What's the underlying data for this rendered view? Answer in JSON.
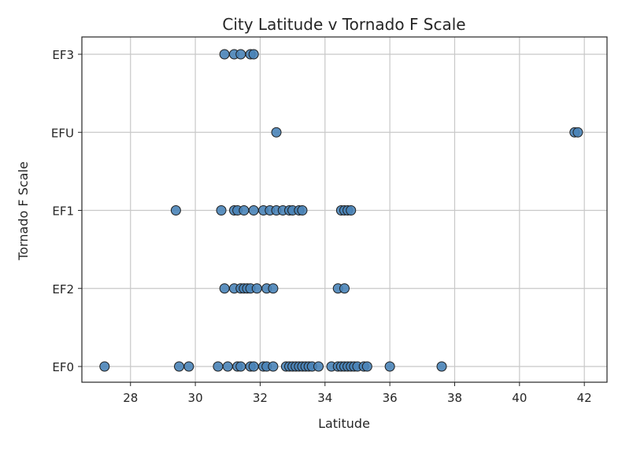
{
  "chart_data": {
    "type": "scatter",
    "title": "City Latitude v Tornado F Scale",
    "xlabel": "Latitude",
    "ylabel": "Tornado F Scale",
    "xlim": [
      26.5,
      42.7
    ],
    "x_ticks": [
      28,
      30,
      32,
      34,
      36,
      38,
      40,
      42
    ],
    "categories": [
      "EF0",
      "EF2",
      "EF1",
      "EFU",
      "EF3"
    ],
    "grid": true,
    "marker_color": "#4a84b8",
    "marker_edge_color": "#1f1f1f",
    "points": [
      {
        "x": 27.2,
        "y": "EF0"
      },
      {
        "x": 29.5,
        "y": "EF0"
      },
      {
        "x": 29.8,
        "y": "EF0"
      },
      {
        "x": 30.7,
        "y": "EF0"
      },
      {
        "x": 31.0,
        "y": "EF0"
      },
      {
        "x": 31.3,
        "y": "EF0"
      },
      {
        "x": 31.4,
        "y": "EF0"
      },
      {
        "x": 31.7,
        "y": "EF0"
      },
      {
        "x": 31.8,
        "y": "EF0"
      },
      {
        "x": 32.1,
        "y": "EF0"
      },
      {
        "x": 32.2,
        "y": "EF0"
      },
      {
        "x": 32.4,
        "y": "EF0"
      },
      {
        "x": 32.8,
        "y": "EF0"
      },
      {
        "x": 32.9,
        "y": "EF0"
      },
      {
        "x": 33.0,
        "y": "EF0"
      },
      {
        "x": 33.1,
        "y": "EF0"
      },
      {
        "x": 33.2,
        "y": "EF0"
      },
      {
        "x": 33.3,
        "y": "EF0"
      },
      {
        "x": 33.4,
        "y": "EF0"
      },
      {
        "x": 33.5,
        "y": "EF0"
      },
      {
        "x": 33.6,
        "y": "EF0"
      },
      {
        "x": 33.8,
        "y": "EF0"
      },
      {
        "x": 34.2,
        "y": "EF0"
      },
      {
        "x": 34.4,
        "y": "EF0"
      },
      {
        "x": 34.5,
        "y": "EF0"
      },
      {
        "x": 34.6,
        "y": "EF0"
      },
      {
        "x": 34.7,
        "y": "EF0"
      },
      {
        "x": 34.8,
        "y": "EF0"
      },
      {
        "x": 34.9,
        "y": "EF0"
      },
      {
        "x": 35.0,
        "y": "EF0"
      },
      {
        "x": 35.2,
        "y": "EF0"
      },
      {
        "x": 35.3,
        "y": "EF0"
      },
      {
        "x": 36.0,
        "y": "EF0"
      },
      {
        "x": 37.6,
        "y": "EF0"
      },
      {
        "x": 30.9,
        "y": "EF2"
      },
      {
        "x": 31.2,
        "y": "EF2"
      },
      {
        "x": 31.4,
        "y": "EF2"
      },
      {
        "x": 31.5,
        "y": "EF2"
      },
      {
        "x": 31.6,
        "y": "EF2"
      },
      {
        "x": 31.7,
        "y": "EF2"
      },
      {
        "x": 31.9,
        "y": "EF2"
      },
      {
        "x": 32.2,
        "y": "EF2"
      },
      {
        "x": 32.4,
        "y": "EF2"
      },
      {
        "x": 34.4,
        "y": "EF2"
      },
      {
        "x": 34.6,
        "y": "EF2"
      },
      {
        "x": 29.4,
        "y": "EF1"
      },
      {
        "x": 30.8,
        "y": "EF1"
      },
      {
        "x": 31.2,
        "y": "EF1"
      },
      {
        "x": 31.3,
        "y": "EF1"
      },
      {
        "x": 31.5,
        "y": "EF1"
      },
      {
        "x": 31.8,
        "y": "EF1"
      },
      {
        "x": 32.1,
        "y": "EF1"
      },
      {
        "x": 32.3,
        "y": "EF1"
      },
      {
        "x": 32.5,
        "y": "EF1"
      },
      {
        "x": 32.7,
        "y": "EF1"
      },
      {
        "x": 32.9,
        "y": "EF1"
      },
      {
        "x": 33.0,
        "y": "EF1"
      },
      {
        "x": 33.2,
        "y": "EF1"
      },
      {
        "x": 33.3,
        "y": "EF1"
      },
      {
        "x": 34.5,
        "y": "EF1"
      },
      {
        "x": 34.6,
        "y": "EF1"
      },
      {
        "x": 34.7,
        "y": "EF1"
      },
      {
        "x": 34.8,
        "y": "EF1"
      },
      {
        "x": 32.5,
        "y": "EFU"
      },
      {
        "x": 41.7,
        "y": "EFU"
      },
      {
        "x": 41.8,
        "y": "EFU"
      },
      {
        "x": 30.9,
        "y": "EF3"
      },
      {
        "x": 31.2,
        "y": "EF3"
      },
      {
        "x": 31.4,
        "y": "EF3"
      },
      {
        "x": 31.7,
        "y": "EF3"
      },
      {
        "x": 31.8,
        "y": "EF3"
      }
    ]
  }
}
